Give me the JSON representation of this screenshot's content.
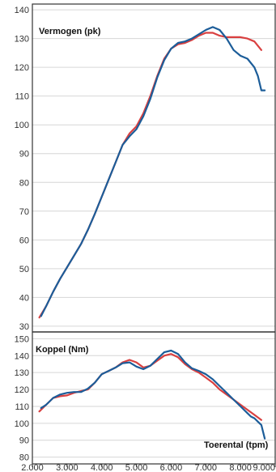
{
  "chart_data": [
    {
      "type": "line",
      "title": "Vermogen (pk)",
      "xlim": [
        2000,
        9000
      ],
      "ylim": [
        28,
        142
      ],
      "yticks": [
        30,
        40,
        50,
        60,
        70,
        80,
        90,
        100,
        110,
        120,
        130,
        140
      ],
      "grid": true,
      "series": [
        {
          "color": "#d94040",
          "x": [
            2200,
            2400,
            2600,
            2800,
            3000,
            3200,
            3400,
            3600,
            3800,
            4000,
            4200,
            4400,
            4600,
            4800,
            5000,
            5200,
            5400,
            5600,
            5800,
            6000,
            6200,
            6400,
            6600,
            6800,
            7000,
            7200,
            7400,
            7600,
            7800,
            8000,
            8200,
            8400,
            8600
          ],
          "y": [
            33,
            37,
            42,
            46.5,
            50.5,
            54.5,
            58.5,
            63.5,
            69,
            75,
            81,
            87,
            93,
            97,
            99.5,
            104,
            110,
            117,
            123,
            126.5,
            128,
            128.5,
            129.5,
            131,
            132,
            132,
            131,
            130.5,
            130.5,
            130.5,
            130,
            129,
            126
          ]
        },
        {
          "color": "#1c5d99",
          "x": [
            2250,
            2400,
            2600,
            2800,
            3000,
            3200,
            3400,
            3600,
            3800,
            4000,
            4200,
            4400,
            4600,
            4800,
            5000,
            5200,
            5400,
            5600,
            5800,
            6000,
            6200,
            6400,
            6600,
            6800,
            7000,
            7200,
            7400,
            7600,
            7800,
            8000,
            8200,
            8400,
            8500,
            8600,
            8700
          ],
          "y": [
            33.5,
            37,
            42,
            46.5,
            50.5,
            54.5,
            58.5,
            63.5,
            69,
            75,
            81,
            87,
            93,
            96,
            98.5,
            103,
            109,
            116.5,
            122.5,
            126.5,
            128.5,
            129,
            130,
            131.5,
            133,
            134,
            133,
            130,
            126,
            124,
            123,
            120,
            117,
            112,
            112
          ]
        }
      ]
    },
    {
      "type": "line",
      "title": "Koppel (Nm)",
      "xlabel": "Toerental (tpm)",
      "xlim": [
        2000,
        9000
      ],
      "ylim": [
        76,
        154
      ],
      "yticks": [
        80,
        90,
        100,
        110,
        120,
        130,
        140,
        150
      ],
      "xticks": [
        2000,
        3000,
        4000,
        5000,
        6000,
        7000,
        8000,
        9000
      ],
      "xtick_labels": [
        "2.000",
        "3.000",
        "4.000",
        "5.000",
        "6.000",
        "7.000",
        "8.000",
        "9.000"
      ],
      "grid": true,
      "series": [
        {
          "color": "#d94040",
          "x": [
            2200,
            2400,
            2600,
            2800,
            3000,
            3200,
            3400,
            3600,
            3800,
            4000,
            4200,
            4400,
            4600,
            4800,
            5000,
            5200,
            5400,
            5600,
            5800,
            6000,
            6200,
            6400,
            6600,
            6800,
            7000,
            7200,
            7400,
            7600,
            7800,
            8000,
            8200,
            8400,
            8600
          ],
          "y": [
            107,
            111,
            115,
            116,
            116.5,
            118,
            119,
            120,
            124,
            129,
            131,
            133,
            136,
            137.5,
            136,
            133,
            134,
            137,
            140,
            141,
            139,
            135,
            132,
            130,
            127,
            124,
            120,
            117,
            114,
            111,
            108,
            105,
            102
          ]
        },
        {
          "color": "#1c5d99",
          "x": [
            2250,
            2400,
            2600,
            2800,
            3000,
            3200,
            3400,
            3600,
            3800,
            4000,
            4200,
            4400,
            4600,
            4800,
            5000,
            5200,
            5400,
            5600,
            5800,
            6000,
            6200,
            6400,
            6600,
            6800,
            7000,
            7200,
            7400,
            7600,
            7800,
            8000,
            8200,
            8300,
            8400,
            8500,
            8600,
            8650,
            8700
          ],
          "y": [
            109,
            111,
            115,
            117,
            118,
            118.5,
            118.5,
            120.5,
            124,
            129,
            131,
            133,
            135.5,
            136,
            133.5,
            132,
            134,
            138,
            142,
            143,
            141,
            136,
            132.5,
            131,
            129,
            126,
            122,
            118,
            114,
            110,
            106,
            104,
            103,
            101,
            99,
            95,
            91
          ]
        }
      ]
    }
  ]
}
